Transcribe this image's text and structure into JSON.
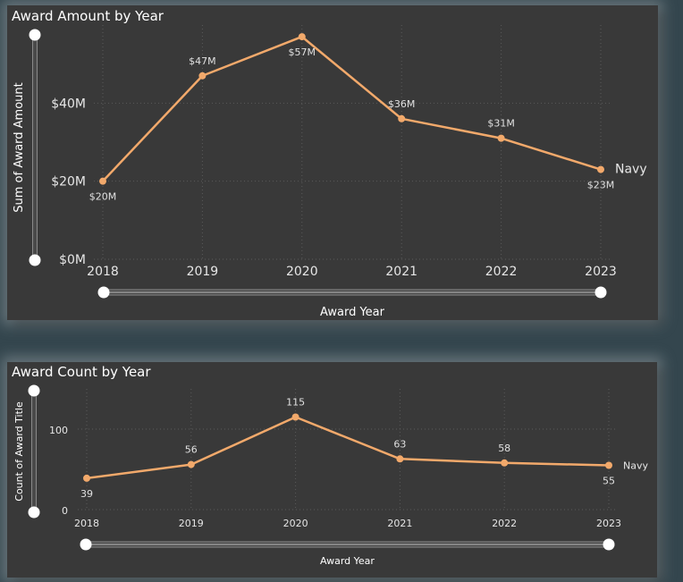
{
  "chart_data": [
    {
      "type": "line",
      "title": "Award Amount by Year",
      "xlabel": "Award Year",
      "ylabel": "Sum of Award Amount",
      "x": [
        "2018",
        "2019",
        "2020",
        "2021",
        "2022",
        "2023"
      ],
      "series": [
        {
          "name": "Navy",
          "color": "#f2a96b",
          "values": [
            20,
            47,
            57,
            36,
            31,
            23
          ],
          "labels": [
            "$20M",
            "$47M",
            "$57M",
            "$36M",
            "$31M",
            "$23M"
          ]
        }
      ],
      "yticks": [
        {
          "value": 0,
          "label": "$0M"
        },
        {
          "value": 20,
          "label": "$20M"
        },
        {
          "value": 40,
          "label": "$40M"
        }
      ],
      "ylim": [
        0,
        60
      ],
      "grid": true
    },
    {
      "type": "line",
      "title": "Award Count by Year",
      "xlabel": "Award Year",
      "ylabel": "Count of Award Title",
      "x": [
        "2018",
        "2019",
        "2020",
        "2021",
        "2022",
        "2023"
      ],
      "series": [
        {
          "name": "Navy",
          "color": "#f2a96b",
          "values": [
            39,
            56,
            115,
            63,
            58,
            55
          ],
          "labels": [
            "39",
            "56",
            "115",
            "63",
            "58",
            "55"
          ]
        }
      ],
      "yticks": [
        {
          "value": 0,
          "label": "0"
        },
        {
          "value": 100,
          "label": "100"
        }
      ],
      "ylim": [
        0,
        150
      ],
      "grid": true
    }
  ]
}
